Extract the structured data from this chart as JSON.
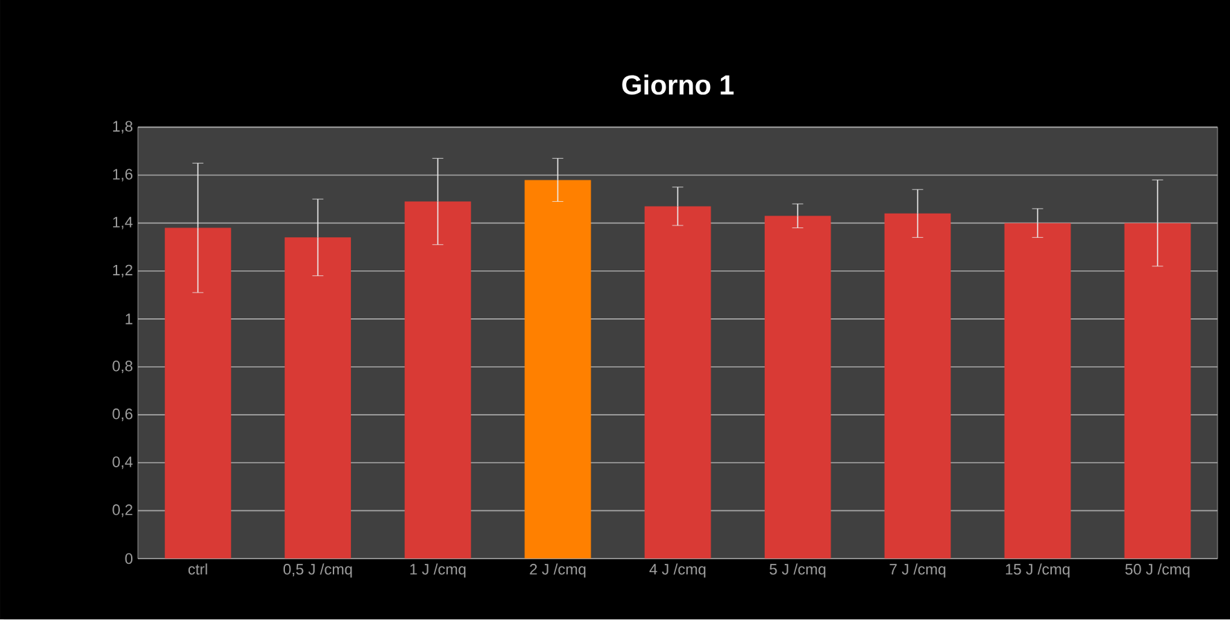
{
  "chart_data": {
    "type": "bar",
    "title": "Giorno 1",
    "categories": [
      "ctrl",
      "0,5 J /cmq",
      "1 J /cmq",
      "2 J /cmq",
      "4 J /cmq",
      "5 J /cmq",
      "7 J /cmq",
      "15 J /cmq",
      "50 J /cmq"
    ],
    "values": [
      1.38,
      1.34,
      1.49,
      1.58,
      1.47,
      1.43,
      1.44,
      1.4,
      1.4
    ],
    "errors": [
      0.27,
      0.16,
      0.18,
      0.09,
      0.08,
      0.05,
      0.1,
      0.06,
      0.18
    ],
    "colors": [
      "#d93a35",
      "#d93a35",
      "#d93a35",
      "#ff8000",
      "#d93a35",
      "#d93a35",
      "#d93a35",
      "#d93a35",
      "#d93a35"
    ],
    "ylim": [
      0,
      1.8
    ],
    "yticks": [
      {
        "value": 0,
        "label": "0"
      },
      {
        "value": 0.2,
        "label": "0,2"
      },
      {
        "value": 0.4,
        "label": "0,4"
      },
      {
        "value": 0.6,
        "label": "0,6"
      },
      {
        "value": 0.8,
        "label": "0,8"
      },
      {
        "value": 1,
        "label": "1"
      },
      {
        "value": 1.2,
        "label": "1,2"
      },
      {
        "value": 1.4,
        "label": "1,4"
      },
      {
        "value": 1.6,
        "label": "1,6"
      },
      {
        "value": 1.8,
        "label": "1,8"
      }
    ],
    "grid": "y"
  }
}
